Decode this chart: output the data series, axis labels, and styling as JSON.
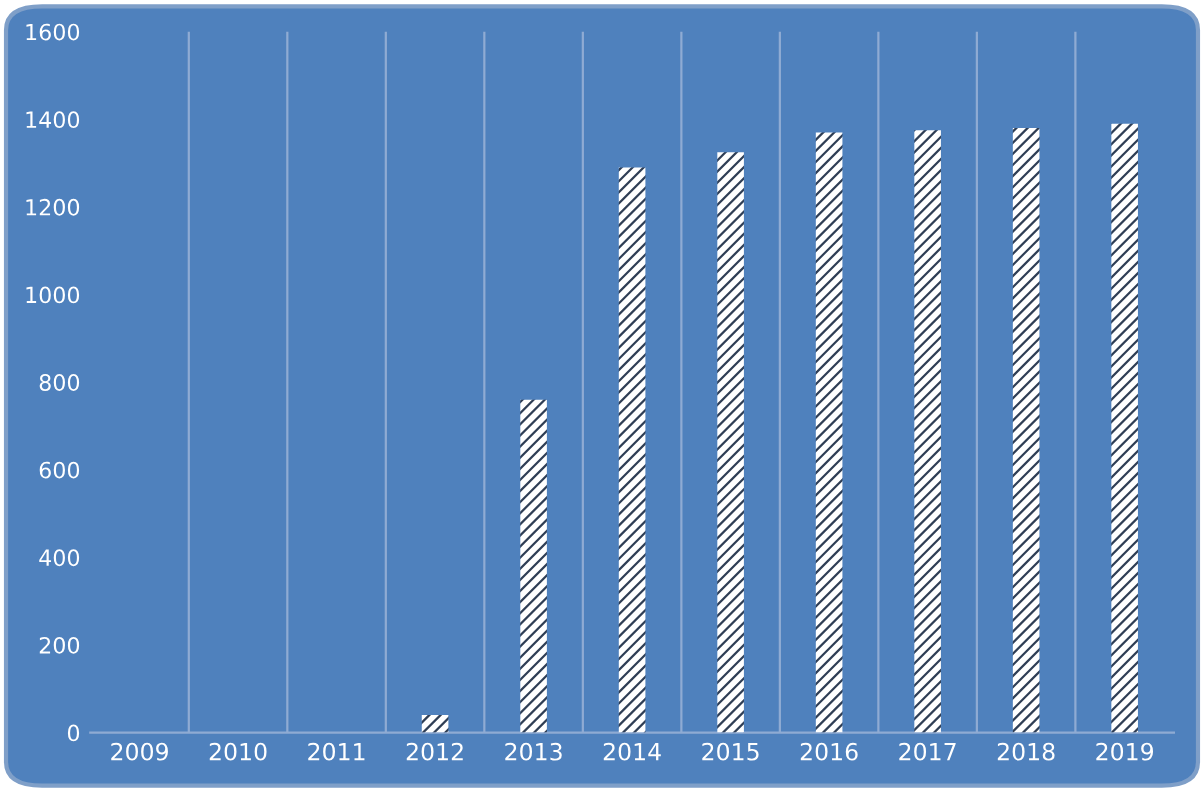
{
  "chart_data": {
    "type": "bar",
    "categories": [
      "2009",
      "2010",
      "2011",
      "2012",
      "2013",
      "2014",
      "2015",
      "2016",
      "2017",
      "2018",
      "2019"
    ],
    "values": [
      0,
      0,
      0,
      40,
      760,
      1290,
      1325,
      1370,
      1375,
      1380,
      1390
    ],
    "color": "#ffffff",
    "ylim": [
      0,
      1600
    ],
    "yticks": [
      0,
      200,
      400,
      600,
      800,
      1000,
      1200,
      1400,
      1600
    ],
    "grid": "x",
    "legend": false
  }
}
